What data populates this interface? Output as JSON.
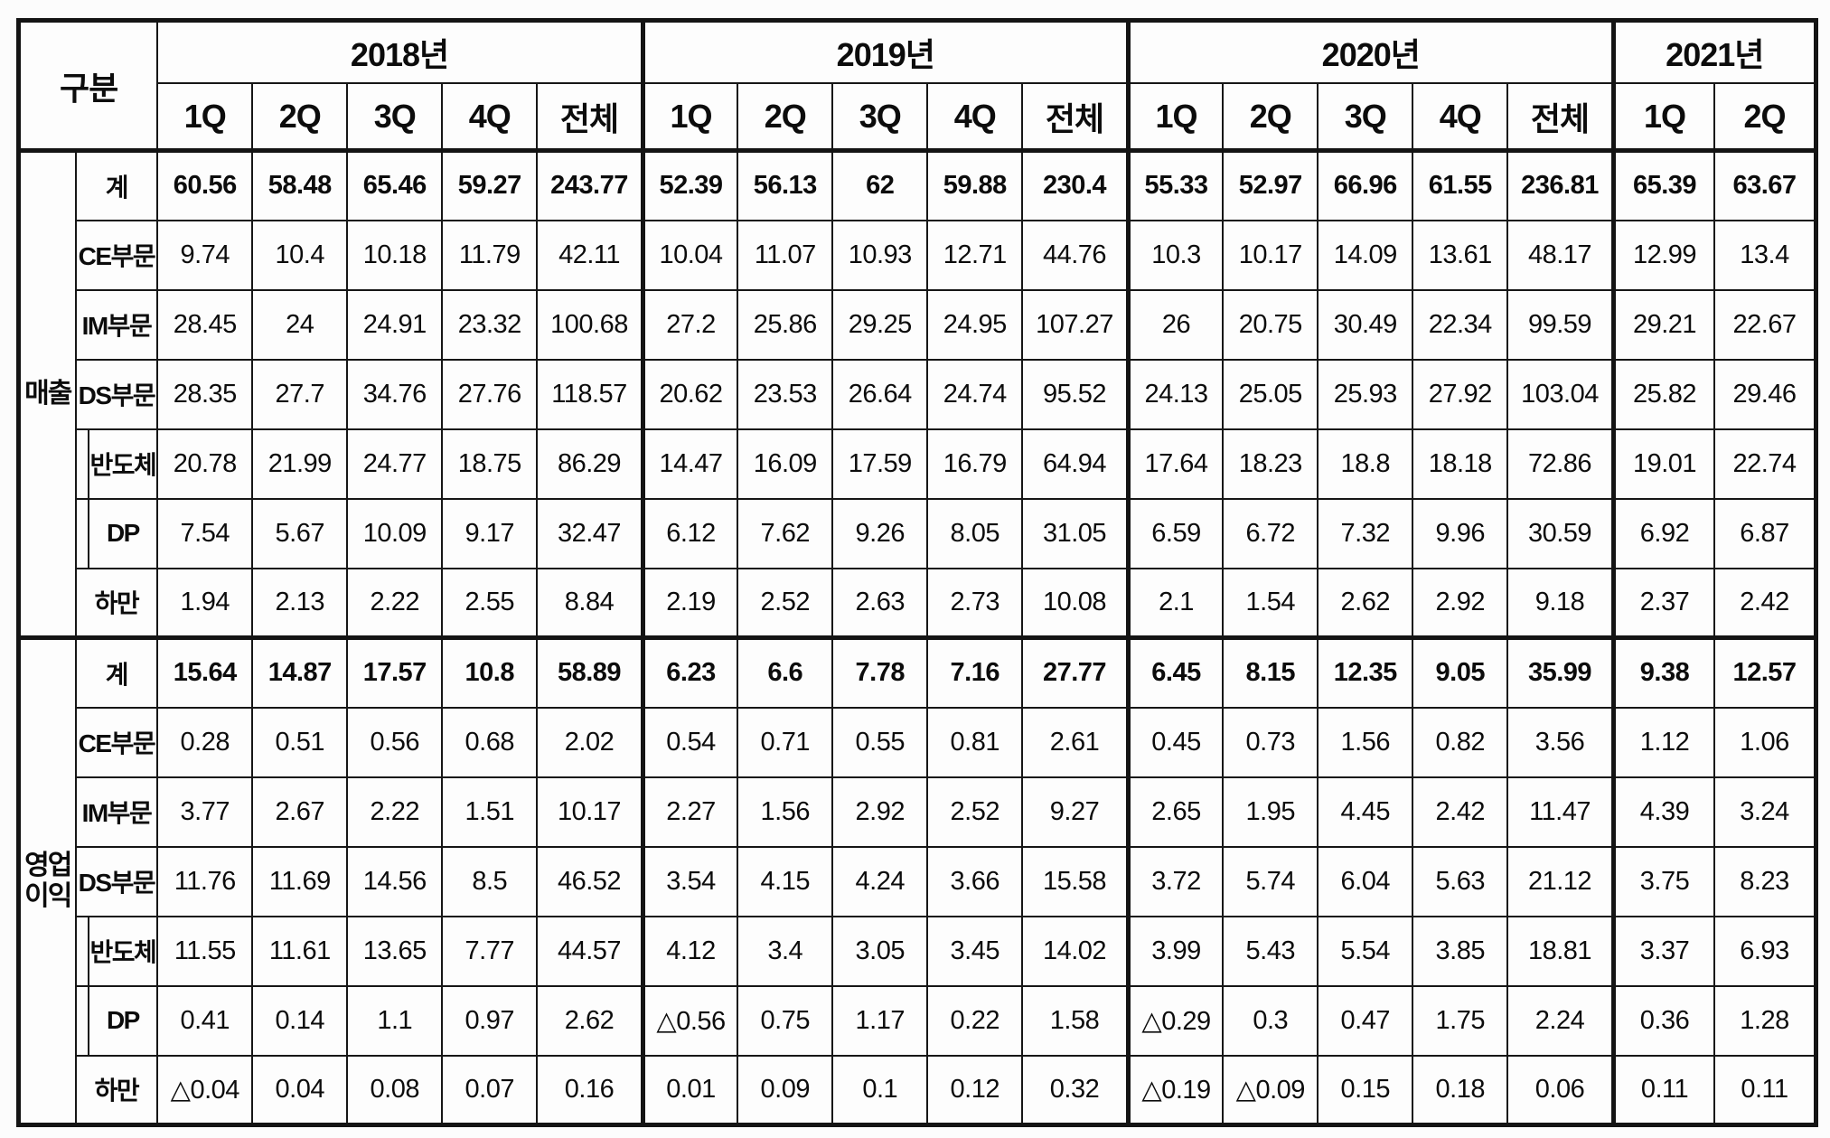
{
  "header": {
    "corner_label": "구분",
    "years": [
      {
        "label": "2018년",
        "quarters": [
          "1Q",
          "2Q",
          "3Q",
          "4Q",
          "전체"
        ]
      },
      {
        "label": "2019년",
        "quarters": [
          "1Q",
          "2Q",
          "3Q",
          "4Q",
          "전체"
        ]
      },
      {
        "label": "2020년",
        "quarters": [
          "1Q",
          "2Q",
          "3Q",
          "4Q",
          "전체"
        ]
      },
      {
        "label": "2021년",
        "quarters": [
          "1Q",
          "2Q"
        ]
      }
    ]
  },
  "sections": [
    {
      "label": "매출",
      "rows": [
        {
          "label": "계",
          "indent": false,
          "bold": true,
          "values": [
            "60.56",
            "58.48",
            "65.46",
            "59.27",
            "243.77",
            "52.39",
            "56.13",
            "62",
            "59.88",
            "230.4",
            "55.33",
            "52.97",
            "66.96",
            "61.55",
            "236.81",
            "65.39",
            "63.67"
          ]
        },
        {
          "label": "CE부문",
          "indent": false,
          "bold": false,
          "values": [
            "9.74",
            "10.4",
            "10.18",
            "11.79",
            "42.11",
            "10.04",
            "11.07",
            "10.93",
            "12.71",
            "44.76",
            "10.3",
            "10.17",
            "14.09",
            "13.61",
            "48.17",
            "12.99",
            "13.4"
          ]
        },
        {
          "label": "IM부문",
          "indent": false,
          "bold": false,
          "values": [
            "28.45",
            "24",
            "24.91",
            "23.32",
            "100.68",
            "27.2",
            "25.86",
            "29.25",
            "24.95",
            "107.27",
            "26",
            "20.75",
            "30.49",
            "22.34",
            "99.59",
            "29.21",
            "22.67"
          ]
        },
        {
          "label": "DS부문",
          "indent": false,
          "bold": false,
          "values": [
            "28.35",
            "27.7",
            "34.76",
            "27.76",
            "118.57",
            "20.62",
            "23.53",
            "26.64",
            "24.74",
            "95.52",
            "24.13",
            "25.05",
            "25.93",
            "27.92",
            "103.04",
            "25.82",
            "29.46"
          ]
        },
        {
          "label": "반도체",
          "indent": true,
          "bold": false,
          "values": [
            "20.78",
            "21.99",
            "24.77",
            "18.75",
            "86.29",
            "14.47",
            "16.09",
            "17.59",
            "16.79",
            "64.94",
            "17.64",
            "18.23",
            "18.8",
            "18.18",
            "72.86",
            "19.01",
            "22.74"
          ]
        },
        {
          "label": "DP",
          "indent": true,
          "bold": false,
          "values": [
            "7.54",
            "5.67",
            "10.09",
            "9.17",
            "32.47",
            "6.12",
            "7.62",
            "9.26",
            "8.05",
            "31.05",
            "6.59",
            "6.72",
            "7.32",
            "9.96",
            "30.59",
            "6.92",
            "6.87"
          ]
        },
        {
          "label": "하만",
          "indent": false,
          "bold": false,
          "values": [
            "1.94",
            "2.13",
            "2.22",
            "2.55",
            "8.84",
            "2.19",
            "2.52",
            "2.63",
            "2.73",
            "10.08",
            "2.1",
            "1.54",
            "2.62",
            "2.92",
            "9.18",
            "2.37",
            "2.42"
          ]
        }
      ]
    },
    {
      "label": "영업이익",
      "rows": [
        {
          "label": "계",
          "indent": false,
          "bold": true,
          "values": [
            "15.64",
            "14.87",
            "17.57",
            "10.8",
            "58.89",
            "6.23",
            "6.6",
            "7.78",
            "7.16",
            "27.77",
            "6.45",
            "8.15",
            "12.35",
            "9.05",
            "35.99",
            "9.38",
            "12.57"
          ]
        },
        {
          "label": "CE부문",
          "indent": false,
          "bold": false,
          "values": [
            "0.28",
            "0.51",
            "0.56",
            "0.68",
            "2.02",
            "0.54",
            "0.71",
            "0.55",
            "0.81",
            "2.61",
            "0.45",
            "0.73",
            "1.56",
            "0.82",
            "3.56",
            "1.12",
            "1.06"
          ]
        },
        {
          "label": "IM부문",
          "indent": false,
          "bold": false,
          "values": [
            "3.77",
            "2.67",
            "2.22",
            "1.51",
            "10.17",
            "2.27",
            "1.56",
            "2.92",
            "2.52",
            "9.27",
            "2.65",
            "1.95",
            "4.45",
            "2.42",
            "11.47",
            "4.39",
            "3.24"
          ]
        },
        {
          "label": "DS부문",
          "indent": false,
          "bold": false,
          "values": [
            "11.76",
            "11.69",
            "14.56",
            "8.5",
            "46.52",
            "3.54",
            "4.15",
            "4.24",
            "3.66",
            "15.58",
            "3.72",
            "5.74",
            "6.04",
            "5.63",
            "21.12",
            "3.75",
            "8.23"
          ]
        },
        {
          "label": "반도체",
          "indent": true,
          "bold": false,
          "values": [
            "11.55",
            "11.61",
            "13.65",
            "7.77",
            "44.57",
            "4.12",
            "3.4",
            "3.05",
            "3.45",
            "14.02",
            "3.99",
            "5.43",
            "5.54",
            "3.85",
            "18.81",
            "3.37",
            "6.93"
          ]
        },
        {
          "label": "DP",
          "indent": true,
          "bold": false,
          "values": [
            "0.41",
            "0.14",
            "1.1",
            "0.97",
            "2.62",
            "△0.56",
            "0.75",
            "1.17",
            "0.22",
            "1.58",
            "△0.29",
            "0.3",
            "0.47",
            "1.75",
            "2.24",
            "0.36",
            "1.28"
          ]
        },
        {
          "label": "하만",
          "indent": false,
          "bold": false,
          "values": [
            "△0.04",
            "0.04",
            "0.08",
            "0.07",
            "0.16",
            "0.01",
            "0.09",
            "0.1",
            "0.12",
            "0.32",
            "△0.19",
            "△0.09",
            "0.15",
            "0.18",
            "0.06",
            "0.11",
            "0.11"
          ]
        }
      ]
    }
  ]
}
